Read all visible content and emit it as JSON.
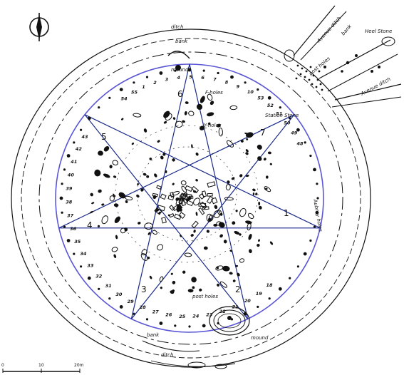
{
  "colors": {
    "ink": "#111111",
    "circle": "#5a56d6",
    "star": "#1a2a8a",
    "background": "#ffffff"
  },
  "north_arrow_icon": "north-compass-icon",
  "star_labels": [
    "1",
    "2",
    "3",
    "4",
    "5",
    "6",
    "7"
  ],
  "features": {
    "ditch_top": "ditch",
    "bank_top": "bank",
    "ditch_bottom": "ditch",
    "bank_bottom": "bank",
    "avenue_top": "Avenue ditch",
    "avenue_bank": "bank",
    "avenue_bottom": "Avenue ditch",
    "heel_stone": "Heel Stone",
    "station_stone": "Station Stone",
    "post_holes": "post holes",
    "aubrey_holes": "Aubrey holes",
    "f_holes": "F-holes",
    "y_holes": "Y-holes",
    "mound_top": "mound",
    "mound_bottom": "mound"
  },
  "aubrey_hole_numbers_top": [
    "54",
    "55",
    "1",
    "2",
    "3",
    "4",
    "5",
    "6",
    "7",
    "8",
    "9",
    "10",
    "53",
    "52",
    "51",
    "50",
    "49",
    "48"
  ],
  "aubrey_hole_numbers_left": [
    "43",
    "42",
    "41",
    "40",
    "39",
    "38",
    "37",
    "36",
    "35",
    "34",
    "33",
    "32",
    "31",
    "30",
    "29",
    "28",
    "27",
    "26",
    "25",
    "24",
    "23",
    "22",
    "21",
    "20",
    "19",
    "18"
  ],
  "scale_bar": {
    "labels": [
      "0",
      "10",
      "20m"
    ]
  }
}
